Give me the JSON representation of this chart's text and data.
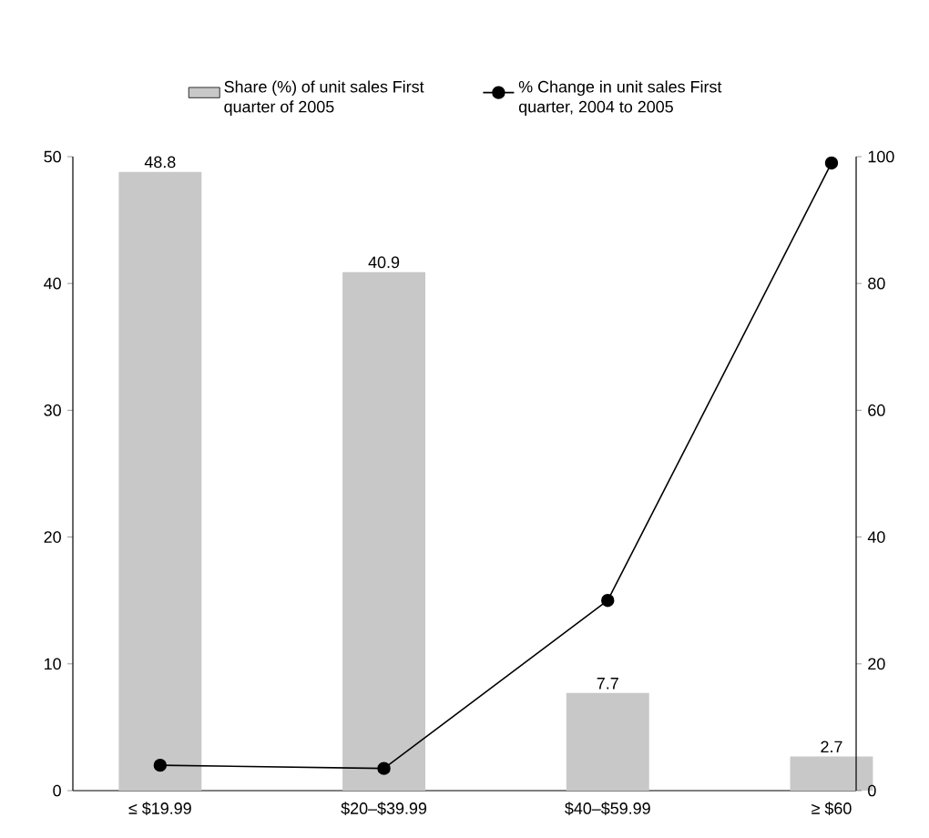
{
  "chart_data": {
    "type": "bar",
    "categories": [
      "≤ $19.99",
      "$20–$39.99",
      "$40–$59.99",
      "≥ $60"
    ],
    "series": [
      {
        "name": "Share (%) of unit sales First quarter of 2005",
        "color": "#c8c8c8",
        "values": [
          48.8,
          40.9,
          7.7,
          2.7
        ],
        "value_labels": [
          "48.8",
          "40.9",
          "7.7",
          "2.7"
        ]
      },
      {
        "name": "% Change in unit sales First quarter, 2004 to 2005",
        "type": "line",
        "axis": "y2",
        "color": "#000000",
        "values": [
          4,
          3.5,
          30,
          99
        ]
      }
    ],
    "ylim": [
      0,
      50
    ],
    "yticks": [
      0,
      10,
      20,
      30,
      40,
      50
    ],
    "y2lim": [
      0,
      100
    ],
    "y2ticks": [
      0,
      20,
      40,
      60,
      80,
      100
    ],
    "legend": "top",
    "marker": "circle",
    "line_style": "solid",
    "grid": false
  }
}
